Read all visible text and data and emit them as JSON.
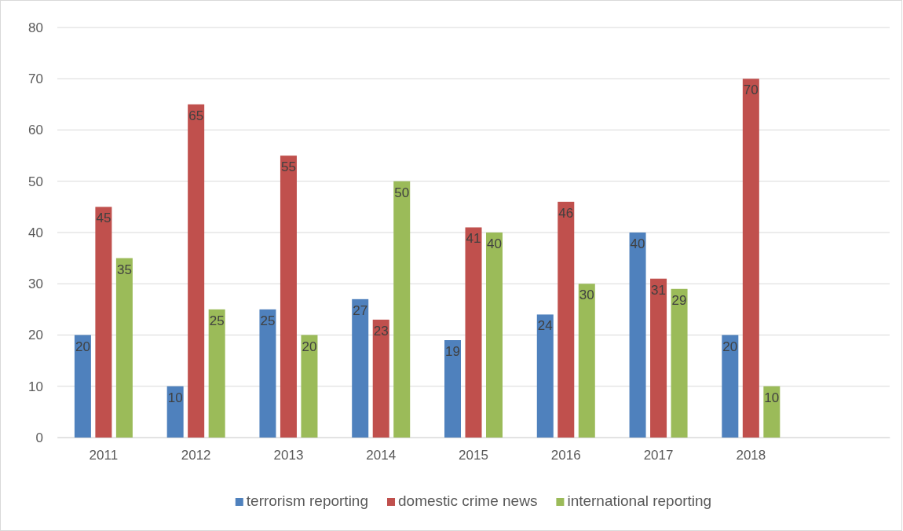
{
  "chart_data": {
    "type": "bar",
    "categories": [
      "2011",
      "2012",
      "2013",
      "2014",
      "2015",
      "2016",
      "2017",
      "2018",
      null
    ],
    "series": [
      {
        "name": "terrorism reporting",
        "color": "#4f81bd",
        "values": [
          20,
          10,
          25,
          27,
          19,
          24,
          40,
          20,
          null
        ]
      },
      {
        "name": "domestic crime news",
        "color": "#c0504d",
        "values": [
          45,
          65,
          55,
          23,
          41,
          46,
          31,
          70,
          null
        ]
      },
      {
        "name": "international reporting",
        "color": "#9bbb59",
        "values": [
          35,
          25,
          20,
          50,
          40,
          30,
          29,
          10,
          null
        ]
      }
    ],
    "ylim": [
      0,
      80
    ],
    "yticks": [
      0,
      10,
      20,
      30,
      40,
      50,
      60,
      70,
      80
    ],
    "grid": "y",
    "legend": "bottom",
    "data_labels": true
  }
}
